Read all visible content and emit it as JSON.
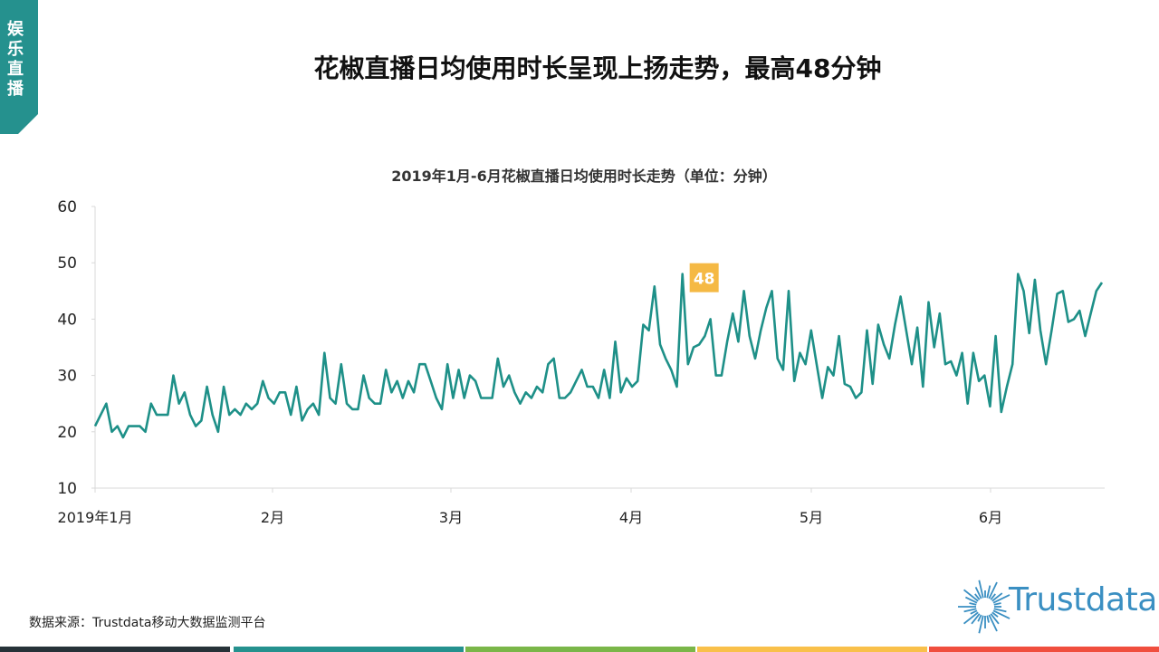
{
  "side_tab": {
    "label": "娱乐直播",
    "color": "#25918e"
  },
  "header": {
    "title": "花椒直播日均使用时长呈现上扬走势，最高48分钟"
  },
  "chart_data": {
    "type": "line",
    "title": "2019年1月-6月花椒直播日均使用时长走势（单位：分钟）",
    "xlabel": "",
    "ylabel": "分钟",
    "ylim": [
      10,
      60
    ],
    "yticks": [
      10,
      20,
      30,
      40,
      50,
      60
    ],
    "xticks": [
      "2019年1月",
      "2月",
      "3月",
      "4月",
      "5月",
      "6月"
    ],
    "grid": false,
    "legend": null,
    "series": [
      {
        "name": "花椒直播日均使用时长",
        "color": "#1e9088",
        "values": [
          21,
          23,
          25,
          20,
          21,
          19,
          21,
          21,
          21,
          20,
          25,
          23,
          23,
          23,
          30,
          25,
          27,
          23,
          21,
          22,
          28,
          23,
          20,
          28,
          23,
          24,
          23,
          25,
          24,
          25,
          29,
          26,
          25,
          27,
          27,
          23,
          28,
          22,
          24,
          25,
          23,
          34,
          26,
          25,
          32,
          25,
          24,
          24,
          30,
          26,
          25,
          25,
          31,
          27,
          29,
          26,
          29,
          27,
          32,
          32,
          29,
          26,
          24,
          32,
          26,
          31,
          26,
          30,
          29,
          26,
          26,
          26,
          33,
          28,
          30,
          27,
          25,
          27,
          26,
          28,
          27,
          32,
          33,
          26,
          26,
          27,
          29,
          31,
          28,
          28,
          26,
          31,
          26,
          36,
          27,
          29.5,
          28,
          29,
          39,
          38,
          45.8,
          35.5,
          33,
          31,
          28,
          48,
          32,
          35,
          35.5,
          37,
          40,
          30,
          30,
          36,
          41,
          36,
          45,
          37,
          33,
          38,
          42,
          45,
          33,
          31,
          45,
          29,
          34,
          32,
          38,
          32,
          26,
          31.5,
          30,
          37,
          28.5,
          28,
          26,
          27,
          38,
          28.5,
          39,
          35.5,
          33,
          39,
          44,
          38,
          32,
          38.5,
          28,
          43,
          35,
          41,
          32,
          32.5,
          30,
          34,
          25,
          34,
          29,
          30,
          24.5,
          37,
          23.5,
          28,
          32,
          48,
          45,
          37.5,
          47,
          38,
          32,
          38,
          44.5,
          45,
          39.5,
          40,
          41.5,
          37,
          41,
          45,
          46.5
        ],
        "annotation": {
          "label": "48",
          "value": 48,
          "color": "#f5b944"
        }
      }
    ]
  },
  "source": {
    "text": "数据来源：Trustdata移动大数据监测平台"
  },
  "logo": {
    "text": "Trustdata",
    "color": "#3a8fc2"
  },
  "footer_bars": [
    {
      "color": "#263238"
    },
    {
      "color": "#25918e"
    },
    {
      "color": "#7ab648"
    },
    {
      "color": "#f9c04a"
    },
    {
      "color": "#f04e3e"
    }
  ]
}
